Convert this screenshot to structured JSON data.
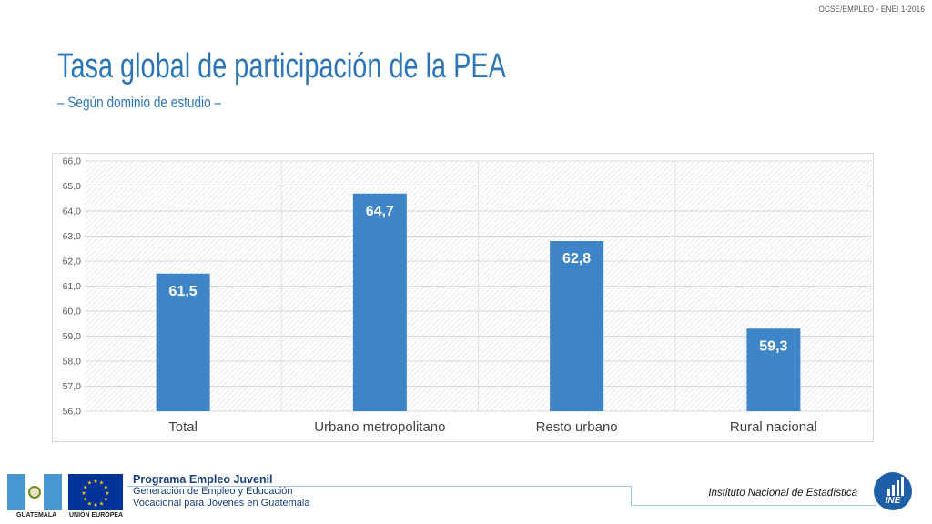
{
  "header": {
    "ref": "OCSE/EMPLEO -  ENEI 1-2016",
    "title": "Tasa global de participación de la PEA",
    "subtitle": "– Según dominio de estudio –"
  },
  "chart_data": {
    "type": "bar",
    "categories": [
      "Total",
      "Urbano metropolitano",
      "Resto urbano",
      "Rural nacional"
    ],
    "values": [
      61.5,
      64.7,
      62.8,
      59.3
    ],
    "value_labels": [
      "61,5",
      "64,7",
      "62,8",
      "59,3"
    ],
    "ylim": [
      56.0,
      66.0
    ],
    "yticks": [
      "56,0",
      "57,0",
      "58,0",
      "59,0",
      "60,0",
      "61,0",
      "62,0",
      "63,0",
      "64,0",
      "65,0",
      "66,0"
    ],
    "xlabel": "",
    "ylabel": "",
    "grid": true,
    "bar_color": "#3d85c6",
    "label_color": "#ffffff"
  },
  "footer": {
    "flag_left_label": "GUATEMALA",
    "flag_right_label": "UNIÓN EUROPEA",
    "program_title": "Programa Empleo Juvenil",
    "program_line1": "Generación de Empleo y Educación",
    "program_line2": "Vocacional para Jóvenes en Guatemala",
    "institution": "Instituto Nacional de Estadística",
    "logo_text": "INE"
  },
  "icons": {
    "guatemala_flag": "guatemala-flag-icon",
    "eu_flag": "eu-flag-icon",
    "ine_logo": "ine-logo-icon"
  }
}
